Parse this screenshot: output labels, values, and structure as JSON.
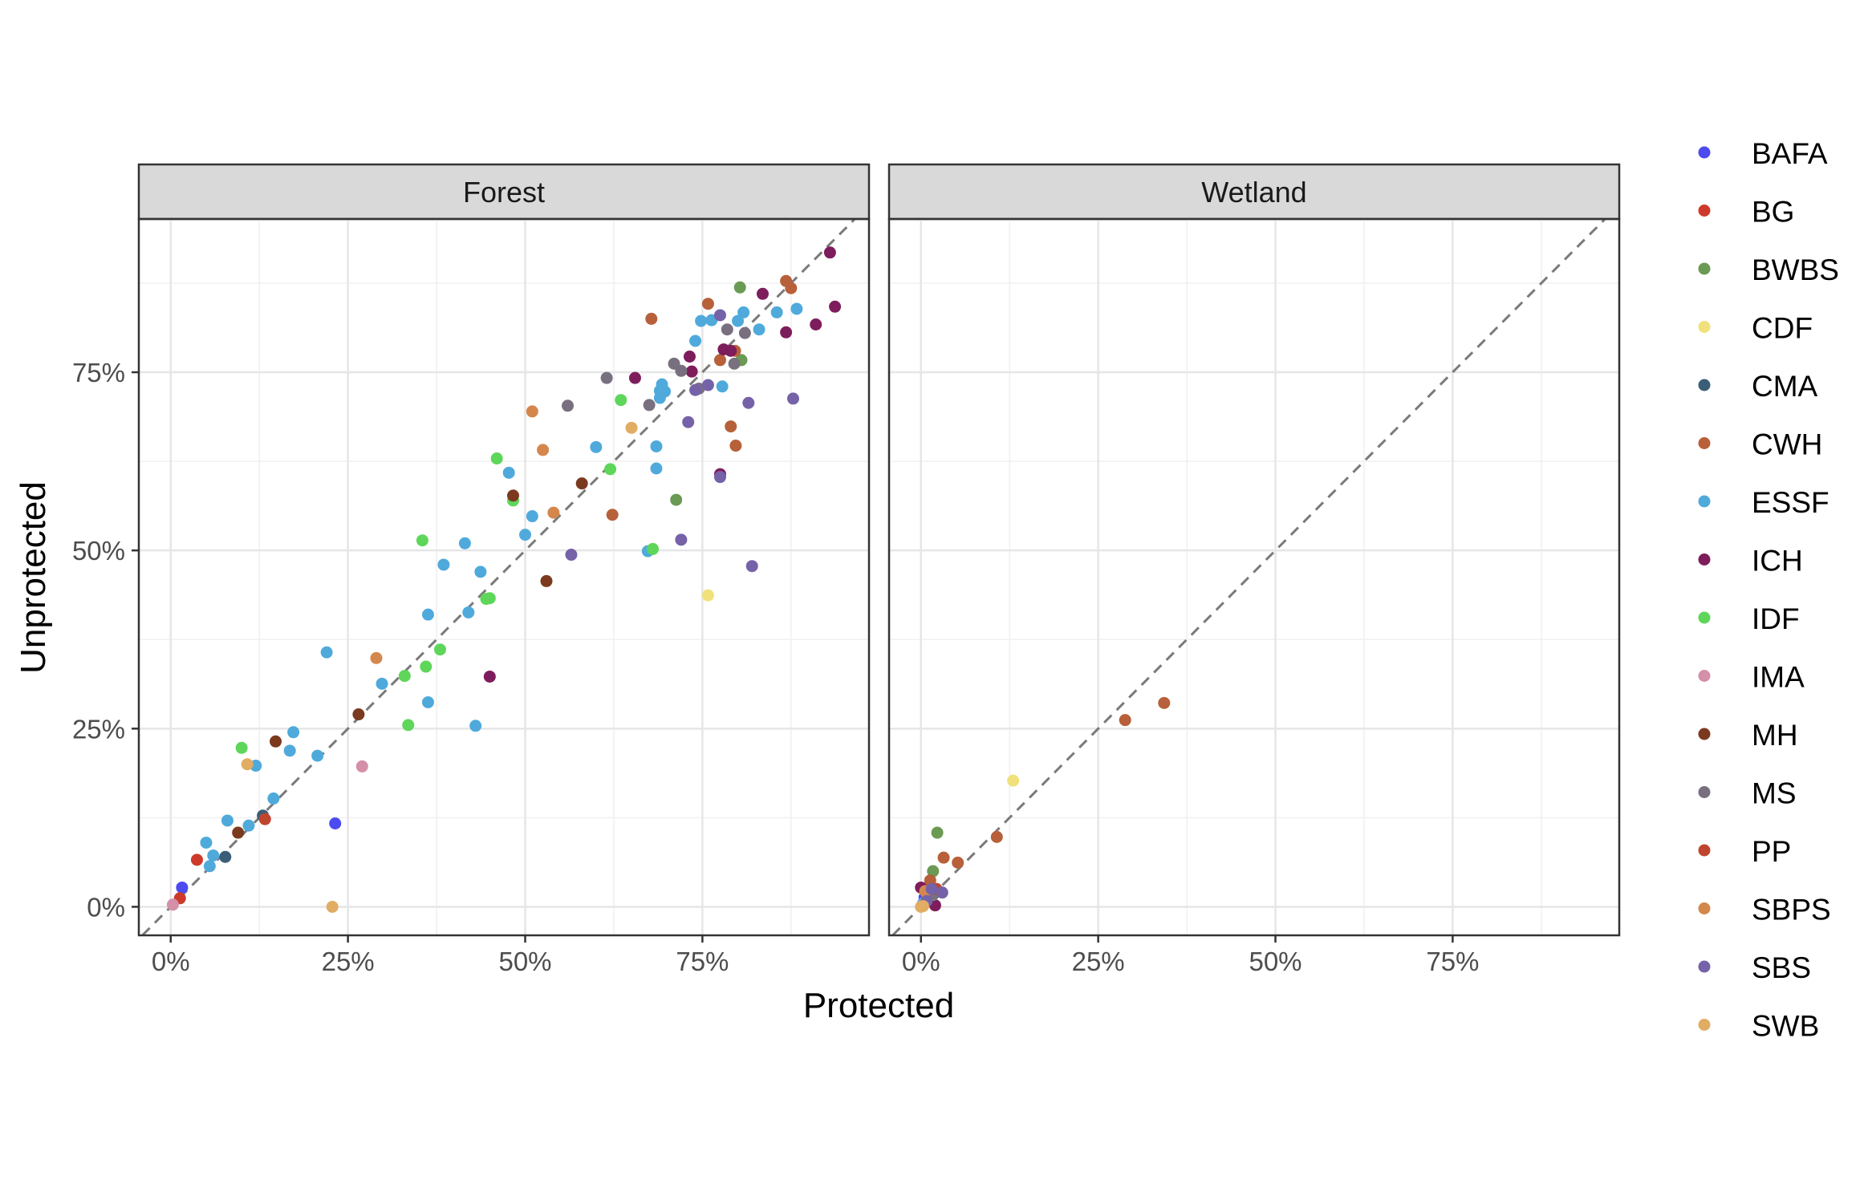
{
  "colors": {
    "BAFA": "#4B4BF0",
    "BG": "#CD3A2A",
    "BWBS": "#6A9A53",
    "CDF": "#F1E17A",
    "CMA": "#3B5E78",
    "CWH": "#B7603A",
    "ESSF": "#4FAADB",
    "ICH": "#7E1D5C",
    "IDF": "#5ED65A",
    "IMA": "#D48FA9",
    "MH": "#7B3A1E",
    "MS": "#78707F",
    "PP": "#C0452E",
    "SBPS": "#D4874C",
    "SBS": "#7562A8",
    "SWB": "#E1AD63"
  },
  "chart_data": {
    "type": "scatter",
    "xlabel": "Protected",
    "ylabel": "Unprotected",
    "xlim": [
      -0.045,
      0.985
    ],
    "ylim": [
      -0.04,
      0.965
    ],
    "x_ticks": [
      0,
      0.25,
      0.5,
      0.75
    ],
    "y_ticks": [
      0,
      0.25,
      0.5,
      0.75
    ],
    "tick_labels": [
      "0%",
      "25%",
      "50%",
      "75%"
    ],
    "reference_line": "y = x (dashed)",
    "grid": true,
    "legend_position": "right",
    "legend": [
      "BAFA",
      "BG",
      "BWBS",
      "CDF",
      "CMA",
      "CWH",
      "ESSF",
      "ICH",
      "IDF",
      "IMA",
      "MH",
      "MS",
      "PP",
      "SBPS",
      "SBS",
      "SWB"
    ],
    "panels": [
      {
        "title": "Forest",
        "points": [
          [
            "BAFA",
            0.016,
            0.027
          ],
          [
            "BAFA",
            0.232,
            0.117
          ],
          [
            "BG",
            0.037,
            0.066
          ],
          [
            "BG",
            0.013,
            0.012
          ],
          [
            "BWBS",
            0.803,
            0.869
          ],
          [
            "BWBS",
            0.805,
            0.767
          ],
          [
            "BWBS",
            0.713,
            0.571
          ],
          [
            "CDF",
            0.758,
            0.437
          ],
          [
            "CMA",
            0.077,
            0.07
          ],
          [
            "CMA",
            0.13,
            0.128
          ],
          [
            "CWH",
            0.678,
            0.825
          ],
          [
            "CWH",
            0.758,
            0.846
          ],
          [
            "CWH",
            0.868,
            0.878
          ],
          [
            "CWH",
            0.875,
            0.868
          ],
          [
            "CWH",
            0.775,
            0.767
          ],
          [
            "CWH",
            0.79,
            0.674
          ],
          [
            "CWH",
            0.797,
            0.647
          ],
          [
            "CWH",
            0.623,
            0.55
          ],
          [
            "CWH",
            0.796,
            0.78
          ],
          [
            "ESSF",
            0.05,
            0.09
          ],
          [
            "ESSF",
            0.06,
            0.072
          ],
          [
            "ESSF",
            0.055,
            0.057
          ],
          [
            "ESSF",
            0.08,
            0.121
          ],
          [
            "ESSF",
            0.11,
            0.114
          ],
          [
            "ESSF",
            0.145,
            0.152
          ],
          [
            "ESSF",
            0.12,
            0.198
          ],
          [
            "ESSF",
            0.168,
            0.219
          ],
          [
            "ESSF",
            0.173,
            0.245
          ],
          [
            "ESSF",
            0.207,
            0.212
          ],
          [
            "ESSF",
            0.22,
            0.357
          ],
          [
            "ESSF",
            0.298,
            0.313
          ],
          [
            "ESSF",
            0.363,
            0.41
          ],
          [
            "ESSF",
            0.363,
            0.287
          ],
          [
            "ESSF",
            0.385,
            0.48
          ],
          [
            "ESSF",
            0.42,
            0.413
          ],
          [
            "ESSF",
            0.415,
            0.51
          ],
          [
            "ESSF",
            0.437,
            0.47
          ],
          [
            "ESSF",
            0.43,
            0.254
          ],
          [
            "ESSF",
            0.477,
            0.609
          ],
          [
            "ESSF",
            0.5,
            0.522
          ],
          [
            "ESSF",
            0.51,
            0.548
          ],
          [
            "ESSF",
            0.6,
            0.645
          ],
          [
            "ESSF",
            0.673,
            0.499
          ],
          [
            "ESSF",
            0.685,
            0.646
          ],
          [
            "ESSF",
            0.685,
            0.615
          ],
          [
            "ESSF",
            0.69,
            0.714
          ],
          [
            "ESSF",
            0.69,
            0.724
          ],
          [
            "ESSF",
            0.693,
            0.733
          ],
          [
            "ESSF",
            0.697,
            0.723
          ],
          [
            "ESSF",
            0.74,
            0.794
          ],
          [
            "ESSF",
            0.748,
            0.822
          ],
          [
            "ESSF",
            0.763,
            0.823
          ],
          [
            "ESSF",
            0.778,
            0.73
          ],
          [
            "ESSF",
            0.8,
            0.822
          ],
          [
            "ESSF",
            0.808,
            0.834
          ],
          [
            "ESSF",
            0.83,
            0.81
          ],
          [
            "ESSF",
            0.855,
            0.834
          ],
          [
            "ESSF",
            0.883,
            0.839
          ],
          [
            "ICH",
            0.93,
            0.918
          ],
          [
            "ICH",
            0.937,
            0.842
          ],
          [
            "ICH",
            0.91,
            0.817
          ],
          [
            "ICH",
            0.868,
            0.806
          ],
          [
            "ICH",
            0.835,
            0.86
          ],
          [
            "ICH",
            0.735,
            0.751
          ],
          [
            "ICH",
            0.732,
            0.772
          ],
          [
            "ICH",
            0.78,
            0.782
          ],
          [
            "ICH",
            0.79,
            0.78
          ],
          [
            "ICH",
            0.655,
            0.742
          ],
          [
            "ICH",
            0.775,
            0.607
          ],
          [
            "ICH",
            0.45,
            0.323
          ],
          [
            "IDF",
            0.1,
            0.223
          ],
          [
            "IDF",
            0.33,
            0.324
          ],
          [
            "IDF",
            0.335,
            0.255
          ],
          [
            "IDF",
            0.355,
            0.514
          ],
          [
            "IDF",
            0.36,
            0.337
          ],
          [
            "IDF",
            0.38,
            0.361
          ],
          [
            "IDF",
            0.445,
            0.432
          ],
          [
            "IDF",
            0.45,
            0.433
          ],
          [
            "IDF",
            0.46,
            0.629
          ],
          [
            "IDF",
            0.483,
            0.57
          ],
          [
            "IDF",
            0.62,
            0.614
          ],
          [
            "IDF",
            0.635,
            0.711
          ],
          [
            "IDF",
            0.68,
            0.502
          ],
          [
            "IMA",
            0.003,
            0.003
          ],
          [
            "IMA",
            0.27,
            0.197
          ],
          [
            "MH",
            0.095,
            0.104
          ],
          [
            "MH",
            0.148,
            0.232
          ],
          [
            "MH",
            0.265,
            0.27
          ],
          [
            "MH",
            0.483,
            0.577
          ],
          [
            "MH",
            0.53,
            0.457
          ],
          [
            "MH",
            0.58,
            0.594
          ],
          [
            "MS",
            0.56,
            0.703
          ],
          [
            "MS",
            0.615,
            0.742
          ],
          [
            "MS",
            0.675,
            0.704
          ],
          [
            "MS",
            0.71,
            0.762
          ],
          [
            "MS",
            0.72,
            0.752
          ],
          [
            "MS",
            0.745,
            0.727
          ],
          [
            "MS",
            0.785,
            0.81
          ],
          [
            "MS",
            0.795,
            0.762
          ],
          [
            "MS",
            0.81,
            0.805
          ],
          [
            "PP",
            0.133,
            0.123
          ],
          [
            "SBPS",
            0.29,
            0.349
          ],
          [
            "SBPS",
            0.51,
            0.695
          ],
          [
            "SBPS",
            0.525,
            0.641
          ],
          [
            "SBPS",
            0.54,
            0.553
          ],
          [
            "SBS",
            0.565,
            0.494
          ],
          [
            "SBS",
            0.72,
            0.515
          ],
          [
            "SBS",
            0.73,
            0.68
          ],
          [
            "SBS",
            0.74,
            0.725
          ],
          [
            "SBS",
            0.758,
            0.732
          ],
          [
            "SBS",
            0.775,
            0.603
          ],
          [
            "SBS",
            0.775,
            0.83
          ],
          [
            "SBS",
            0.815,
            0.707
          ],
          [
            "SBS",
            0.82,
            0.478
          ],
          [
            "SBS",
            0.878,
            0.713
          ],
          [
            "SWB",
            0.108,
            0.2
          ],
          [
            "SWB",
            0.228,
            0.0
          ],
          [
            "SWB",
            0.65,
            0.672
          ]
        ]
      },
      {
        "title": "Wetland",
        "points": [
          [
            "BAFA",
            0.005,
            0.013
          ],
          [
            "BAFA",
            0.012,
            0.008
          ],
          [
            "BG",
            0.008,
            0.01
          ],
          [
            "BWBS",
            0.023,
            0.104
          ],
          [
            "BWBS",
            0.017,
            0.05
          ],
          [
            "CDF",
            0.13,
            0.177
          ],
          [
            "CMA",
            0.01,
            0.012
          ],
          [
            "CWH",
            0.288,
            0.262
          ],
          [
            "CWH",
            0.343,
            0.286
          ],
          [
            "CWH",
            0.107,
            0.098
          ],
          [
            "CWH",
            0.052,
            0.062
          ],
          [
            "CWH",
            0.032,
            0.069
          ],
          [
            "CWH",
            0.013,
            0.037
          ],
          [
            "ESSF",
            0.003,
            0.005
          ],
          [
            "ESSF",
            0.015,
            0.02
          ],
          [
            "ICH",
            0.0,
            0.027
          ],
          [
            "ICH",
            0.02,
            0.002
          ],
          [
            "IDF",
            0.017,
            0.017
          ],
          [
            "IDF",
            0.01,
            0.015
          ],
          [
            "IMA",
            0.004,
            0.003
          ],
          [
            "MH",
            0.021,
            0.022
          ],
          [
            "MS",
            0.018,
            0.018
          ],
          [
            "PP",
            0.022,
            0.025
          ],
          [
            "SBPS",
            0.006,
            0.022
          ],
          [
            "SBS",
            0.03,
            0.02
          ],
          [
            "SBS",
            0.008,
            0.008
          ],
          [
            "SBS",
            0.015,
            0.025
          ],
          [
            "SWB",
            0.003,
            0.001
          ],
          [
            "SWB",
            0.0,
            0.0
          ]
        ]
      }
    ]
  }
}
